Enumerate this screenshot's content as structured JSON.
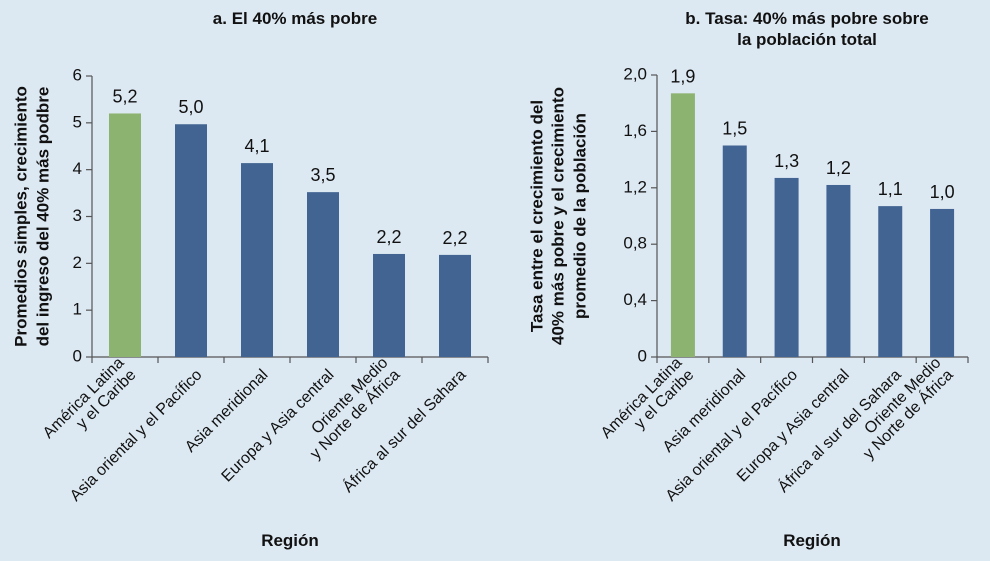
{
  "chart_data": [
    {
      "type": "bar",
      "title": "a. El 40% más pobre",
      "xlabel": "Región",
      "ylabel_lines": [
        "Promedios simples, crecimiento",
        "del ingreso del 40% más podbre"
      ],
      "categories": [
        [
          "América Latina",
          "y el Caribe"
        ],
        [
          "Asia oriental y el Pacífico"
        ],
        [
          "Asia meridional"
        ],
        [
          "Europa y Asia central"
        ],
        [
          "Oriente Medio",
          "y Norte de África"
        ],
        [
          "África al sur del Sahara"
        ]
      ],
      "values": [
        5.2,
        4.97,
        4.14,
        3.52,
        2.2,
        2.18
      ],
      "data_labels": [
        "5,2",
        "5,0",
        "4,1",
        "3,5",
        "2,2",
        "2,2"
      ],
      "highlight_index": 0,
      "yticks": [
        "0",
        "1",
        "2",
        "3",
        "4",
        "5",
        "6"
      ],
      "ylim": [
        0,
        6
      ]
    },
    {
      "type": "bar",
      "title_lines": [
        "b. Tasa: 40% más pobre sobre",
        "la población total"
      ],
      "xlabel": "Región",
      "ylabel_lines": [
        "Tasa entre el crecimiento del",
        "40% más pobre y el crecimiento",
        "promedio de la población"
      ],
      "categories": [
        [
          "América Latina",
          "y el Caribe"
        ],
        [
          "Asia meridional"
        ],
        [
          "Asia oriental y el Pacífico"
        ],
        [
          "Europa y Asia central"
        ],
        [
          "África al sur del Sahara"
        ],
        [
          "Oriente Medio",
          "y Norte de África"
        ]
      ],
      "values": [
        1.87,
        1.5,
        1.27,
        1.22,
        1.07,
        1.05
      ],
      "data_labels": [
        "1,9",
        "1,5",
        "1,3",
        "1,2",
        "1,1",
        "1,0"
      ],
      "highlight_index": 0,
      "yticks": [
        "0",
        "0,4",
        "0,8",
        "1,2",
        "1,6",
        "2,0"
      ],
      "ylim": [
        0,
        2.0
      ]
    }
  ],
  "colors": {
    "background": "#dce8f2",
    "bar": "#416492",
    "highlight": "#8db370"
  }
}
